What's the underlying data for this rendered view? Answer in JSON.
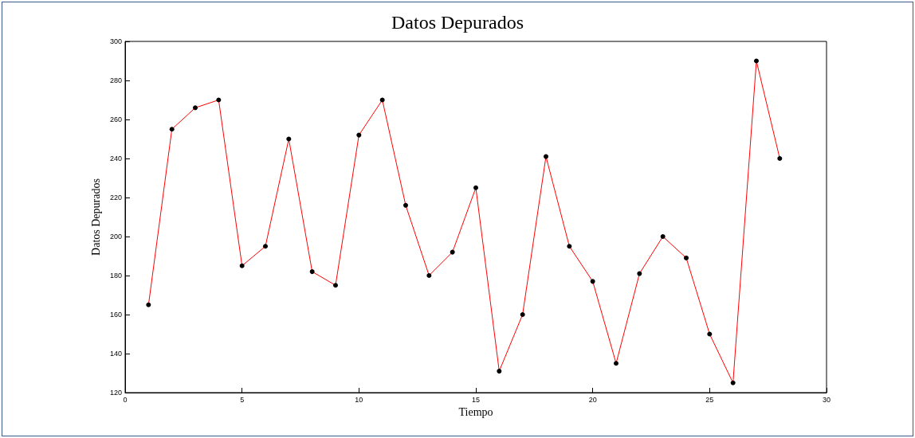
{
  "chart_data": {
    "type": "line",
    "title": "Datos Depurados",
    "xlabel": "Tiempo",
    "ylabel": "Datos Depurados",
    "x": [
      1,
      2,
      3,
      4,
      5,
      6,
      7,
      8,
      9,
      10,
      11,
      12,
      13,
      14,
      15,
      16,
      17,
      18,
      19,
      20,
      21,
      22,
      23,
      24,
      25,
      26,
      27,
      28
    ],
    "series": [
      {
        "color": "#ff0000",
        "values": [
          165,
          255,
          266,
          270,
          185,
          195,
          250,
          182,
          175,
          252,
          270,
          216,
          180,
          192,
          225,
          131,
          160,
          241,
          195,
          177,
          135,
          181,
          200,
          189,
          150,
          125,
          290,
          240
        ]
      }
    ],
    "xlim": [
      0,
      30
    ],
    "xticks": [
      0,
      5,
      10,
      15,
      20,
      25,
      30
    ],
    "ylim": [
      120,
      300
    ],
    "yticks": [
      120,
      140,
      160,
      180,
      200,
      220,
      240,
      260,
      280,
      300
    ],
    "marker": "circle",
    "line_style": "solid"
  }
}
